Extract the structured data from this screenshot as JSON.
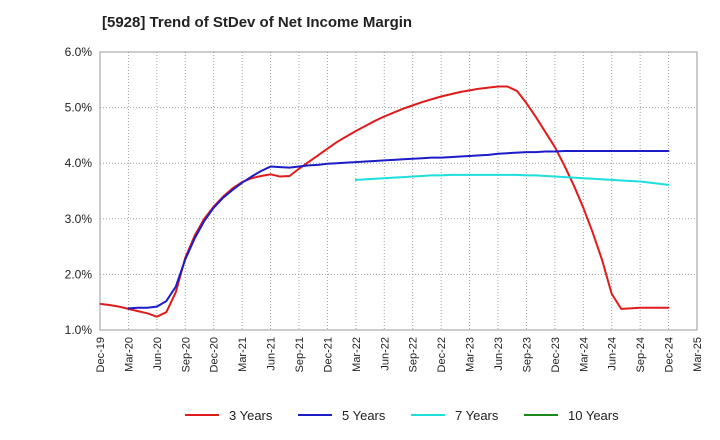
{
  "chart_data": {
    "type": "line",
    "title": "[5928]  Trend of StDev of Net Income Margin",
    "xlabel": "",
    "ylabel": "",
    "x_ticks": [
      "Dec-19",
      "Mar-20",
      "Jun-20",
      "Sep-20",
      "Dec-20",
      "Mar-21",
      "Jun-21",
      "Sep-21",
      "Dec-21",
      "Mar-22",
      "Jun-22",
      "Sep-22",
      "Dec-22",
      "Mar-23",
      "Jun-23",
      "Sep-23",
      "Dec-23",
      "Mar-24",
      "Jun-24",
      "Sep-24",
      "Dec-24",
      "Mar-25"
    ],
    "y_ticks": [
      "1.0%",
      "2.0%",
      "3.0%",
      "4.0%",
      "5.0%",
      "6.0%"
    ],
    "ylim": [
      1.0,
      6.0
    ],
    "y_unit": "%",
    "grid": true,
    "legend_position": "bottom",
    "x_months": [
      "Dec-19",
      "Jan-20",
      "Feb-20",
      "Mar-20",
      "Apr-20",
      "May-20",
      "Jun-20",
      "Jul-20",
      "Aug-20",
      "Sep-20",
      "Oct-20",
      "Nov-20",
      "Dec-20",
      "Jan-21",
      "Feb-21",
      "Mar-21",
      "Apr-21",
      "May-21",
      "Jun-21",
      "Jul-21",
      "Aug-21",
      "Sep-21",
      "Oct-21",
      "Nov-21",
      "Dec-21",
      "Jan-22",
      "Feb-22",
      "Mar-22",
      "Apr-22",
      "May-22",
      "Jun-22",
      "Jul-22",
      "Aug-22",
      "Sep-22",
      "Oct-22",
      "Nov-22",
      "Dec-22",
      "Jan-23",
      "Feb-23",
      "Mar-23",
      "Apr-23",
      "May-23",
      "Jun-23",
      "Jul-23",
      "Aug-23",
      "Sep-23",
      "Oct-23",
      "Nov-23",
      "Dec-23",
      "Jan-24",
      "Feb-24",
      "Mar-24",
      "Apr-24",
      "May-24",
      "Jun-24",
      "Jul-24",
      "Aug-24",
      "Sep-24",
      "Oct-24",
      "Nov-24",
      "Dec-24"
    ],
    "series": [
      {
        "name": "3 Years",
        "color": "#e01b1b",
        "values": [
          1.47,
          1.45,
          1.42,
          1.38,
          1.34,
          1.3,
          1.24,
          1.32,
          1.68,
          2.3,
          2.7,
          3.0,
          3.22,
          3.4,
          3.55,
          3.66,
          3.73,
          3.77,
          3.8,
          3.76,
          3.77,
          3.9,
          4.02,
          4.14,
          4.26,
          4.38,
          4.48,
          4.58,
          4.67,
          4.76,
          4.84,
          4.91,
          4.98,
          5.04,
          5.1,
          5.15,
          5.2,
          5.24,
          5.28,
          5.31,
          5.34,
          5.36,
          5.38,
          5.38,
          5.3,
          5.08,
          4.83,
          4.56,
          4.29,
          3.96,
          3.6,
          3.2,
          2.75,
          2.25,
          1.65,
          1.38,
          1.39,
          1.4,
          1.4,
          1.4,
          1.4
        ]
      },
      {
        "name": "5 Years",
        "color": "#1c1cc8",
        "values": [
          null,
          null,
          null,
          1.39,
          1.4,
          1.4,
          1.42,
          1.52,
          1.78,
          2.27,
          2.65,
          2.96,
          3.2,
          3.38,
          3.52,
          3.65,
          3.76,
          3.86,
          3.94,
          3.93,
          3.92,
          3.94,
          3.96,
          3.97,
          3.99,
          4.0,
          4.01,
          4.02,
          4.03,
          4.04,
          4.05,
          4.06,
          4.07,
          4.08,
          4.09,
          4.1,
          4.1,
          4.11,
          4.12,
          4.13,
          4.14,
          4.15,
          4.17,
          4.18,
          4.19,
          4.2,
          4.2,
          4.21,
          4.21,
          4.22,
          4.22,
          4.22,
          4.22,
          4.22,
          4.22,
          4.22,
          4.22,
          4.22,
          4.22,
          4.22,
          4.22
        ]
      },
      {
        "name": "7 Years",
        "color": "#1edede",
        "values": [
          null,
          null,
          null,
          null,
          null,
          null,
          null,
          null,
          null,
          null,
          null,
          null,
          null,
          null,
          null,
          null,
          null,
          null,
          null,
          null,
          null,
          null,
          null,
          null,
          null,
          null,
          null,
          3.7,
          3.71,
          3.72,
          3.73,
          3.74,
          3.75,
          3.76,
          3.77,
          3.78,
          3.78,
          3.79,
          3.79,
          3.79,
          3.79,
          3.79,
          3.79,
          3.79,
          3.79,
          3.78,
          3.78,
          3.77,
          3.76,
          3.75,
          3.74,
          3.73,
          3.72,
          3.71,
          3.7,
          3.69,
          3.68,
          3.67,
          3.65,
          3.63,
          3.61
        ]
      },
      {
        "name": "10 Years",
        "color": "#1a8a1a",
        "values": []
      }
    ]
  }
}
